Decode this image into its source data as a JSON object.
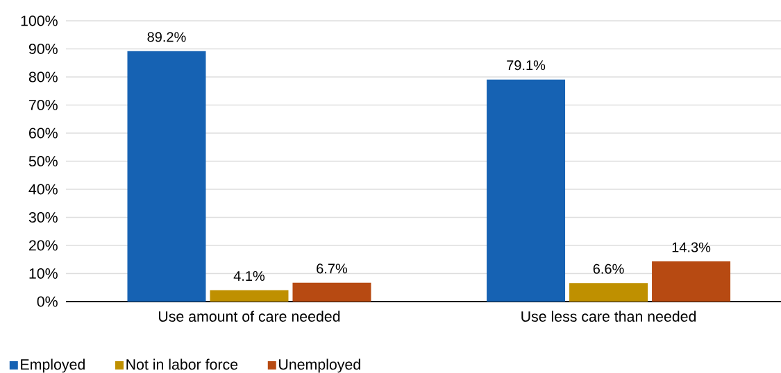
{
  "chart_data": {
    "type": "bar",
    "categories": [
      "Use amount of care needed",
      "Use less care than needed"
    ],
    "series": [
      {
        "name": "Employed",
        "color": "#1662b3",
        "values": [
          89.2,
          79.1
        ],
        "value_labels": [
          "89.2%",
          "79.1%"
        ]
      },
      {
        "name": "Not in labor force",
        "color": "#bf9000",
        "values": [
          4.1,
          6.6
        ],
        "value_labels": [
          "4.1%",
          "6.6%"
        ]
      },
      {
        "name": "Unemployed",
        "color": "#b74a12",
        "values": [
          6.7,
          14.3
        ],
        "value_labels": [
          "6.7%",
          "14.3%"
        ]
      }
    ],
    "ylim": [
      0,
      100
    ],
    "yticks": [
      {
        "value": 0,
        "label": "0%"
      },
      {
        "value": 10,
        "label": "10%"
      },
      {
        "value": 20,
        "label": "20%"
      },
      {
        "value": 30,
        "label": "30%"
      },
      {
        "value": 40,
        "label": "40%"
      },
      {
        "value": 50,
        "label": "50%"
      },
      {
        "value": 60,
        "label": "60%"
      },
      {
        "value": 70,
        "label": "70%"
      },
      {
        "value": 80,
        "label": "80%"
      },
      {
        "value": 90,
        "label": "90%"
      },
      {
        "value": 100,
        "label": "100%"
      }
    ],
    "grid": "y",
    "legend": "bottom left"
  }
}
